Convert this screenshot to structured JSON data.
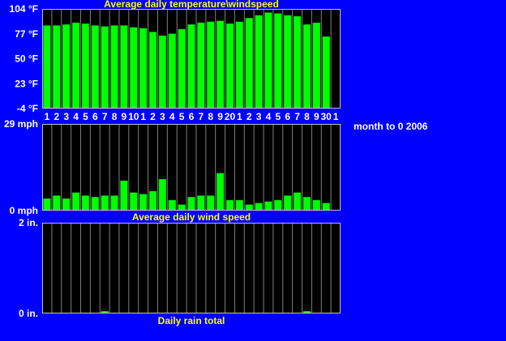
{
  "colors": {
    "background": "#0000ff",
    "plot": "#000000",
    "bar": "#00ff00",
    "bar_outline": "#00aa00",
    "frame": "#c0c0c0",
    "grid": "#808080",
    "title": "#ffff00",
    "label": "#ffffff"
  },
  "side_note": "month to 0 2006",
  "chart_data": [
    {
      "type": "bar",
      "title": "Average daily temperature\\windspeed",
      "ylim": [
        -4,
        104
      ],
      "y_ticks": [
        "104 °F",
        "77 °F",
        "50 °F",
        "23 °F",
        "-4 °F"
      ],
      "categories": [
        "1",
        "2",
        "3",
        "4",
        "5",
        "6",
        "7",
        "8",
        "9",
        "10",
        "1",
        "2",
        "3",
        "4",
        "5",
        "6",
        "7",
        "8",
        "9",
        "20",
        "1",
        "2",
        "3",
        "4",
        "5",
        "6",
        "7",
        "8",
        "9",
        "30",
        "1"
      ],
      "values": [
        86,
        86,
        87,
        89,
        88,
        86,
        85,
        86,
        86,
        84,
        83,
        79,
        75,
        77,
        82,
        87,
        89,
        90,
        91,
        88,
        90,
        94,
        97,
        100,
        99,
        97,
        96,
        87,
        89,
        74,
        null
      ],
      "grid": true
    },
    {
      "type": "bar",
      "title": "Average daily wind speed",
      "ylim": [
        0,
        29
      ],
      "y_ticks": [
        "29 mph",
        "0 mph"
      ],
      "values": [
        4,
        5,
        4,
        6,
        5,
        4.5,
        5,
        5,
        10,
        6,
        5.5,
        6.5,
        10.5,
        3.5,
        2,
        4.5,
        5,
        5,
        12.5,
        3.5,
        3.5,
        2,
        2.5,
        3,
        3.5,
        5,
        6,
        4.5,
        3.5,
        2.5,
        null
      ],
      "grid": true
    },
    {
      "type": "bar",
      "title": "Daily rain total",
      "ylim": [
        0,
        2
      ],
      "y_ticks": [
        "2 in.",
        "0 in."
      ],
      "values": [
        0,
        0,
        0,
        0,
        0,
        0,
        0.05,
        0,
        0,
        0,
        0,
        0,
        0,
        0,
        0,
        0,
        0,
        0,
        0,
        0,
        0,
        0,
        0,
        0,
        0,
        0,
        0,
        0.05,
        0,
        0,
        null
      ],
      "grid": true
    }
  ]
}
